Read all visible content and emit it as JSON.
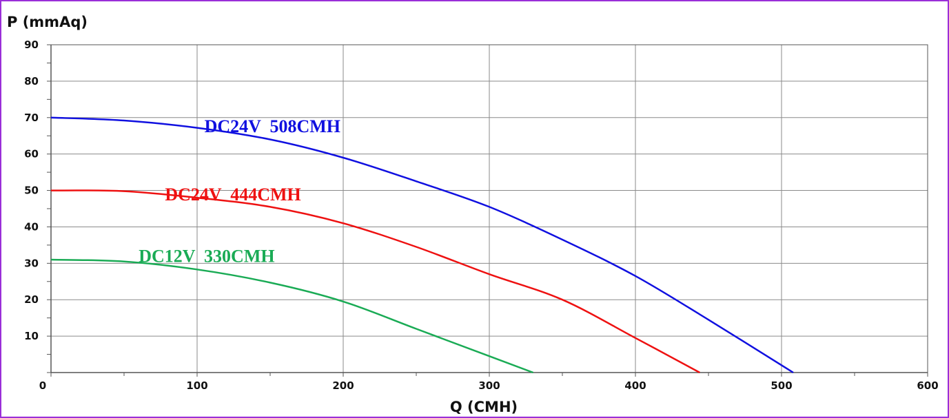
{
  "chart_data": {
    "type": "line",
    "title": "",
    "ylabel": "P (mmAq)",
    "xlabel": "Q (CMH)",
    "xlim": [
      0,
      600
    ],
    "ylim": [
      0,
      90
    ],
    "x_ticks": [
      0,
      100,
      200,
      300,
      400,
      500,
      600
    ],
    "y_ticks": [
      10,
      20,
      30,
      40,
      50,
      60,
      70,
      80,
      90
    ],
    "x_minor_step": 50,
    "y_minor_step": 5,
    "grid": true,
    "series": [
      {
        "name": "DC24V  508CMH",
        "color": "#1010e0",
        "label_pos": [
          105,
          66
        ],
        "points": [
          [
            0,
            70
          ],
          [
            50,
            69.2
          ],
          [
            100,
            67.2
          ],
          [
            150,
            64
          ],
          [
            200,
            59
          ],
          [
            250,
            52.5
          ],
          [
            300,
            45.5
          ],
          [
            350,
            36.5
          ],
          [
            400,
            26.5
          ],
          [
            450,
            14.5
          ],
          [
            508,
            0
          ]
        ]
      },
      {
        "name": "DC24V  444CMH",
        "color": "#ee1111",
        "label_pos": [
          78,
          47.3
        ],
        "points": [
          [
            0,
            50
          ],
          [
            50,
            49.8
          ],
          [
            100,
            48
          ],
          [
            150,
            45.5
          ],
          [
            200,
            41
          ],
          [
            250,
            34.5
          ],
          [
            300,
            27
          ],
          [
            350,
            20
          ],
          [
            400,
            9.5
          ],
          [
            444,
            0
          ]
        ]
      },
      {
        "name": "DC12V  330CMH",
        "color": "#1aab55",
        "label_pos": [
          60,
          30.3
        ],
        "points": [
          [
            0,
            31
          ],
          [
            50,
            30.5
          ],
          [
            100,
            28.3
          ],
          [
            150,
            24.7
          ],
          [
            200,
            19.5
          ],
          [
            250,
            12
          ],
          [
            300,
            4.5
          ],
          [
            330,
            0
          ]
        ]
      }
    ]
  }
}
